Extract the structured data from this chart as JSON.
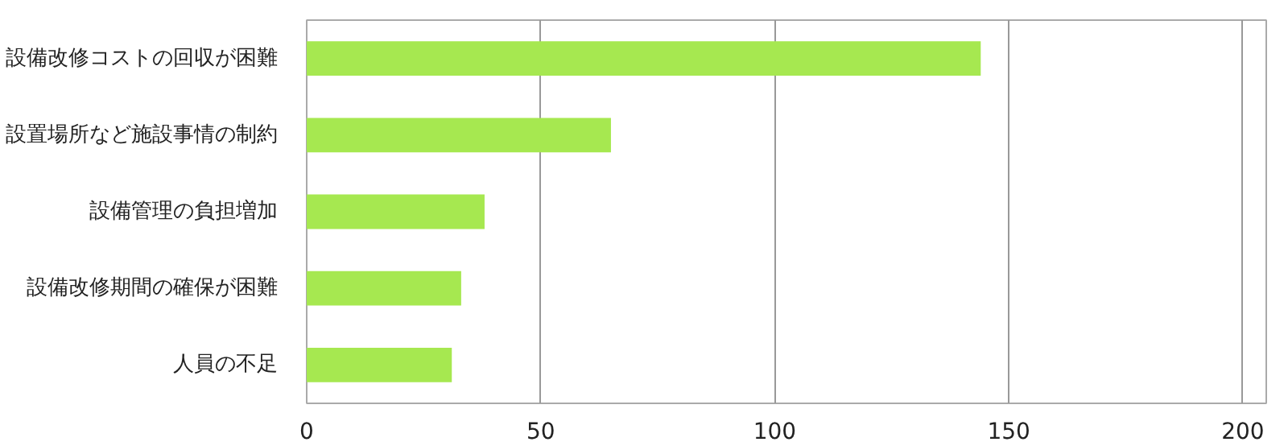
{
  "chart_data": {
    "type": "bar",
    "orientation": "horizontal",
    "categories": [
      "設備改修コストの回収が困難",
      "設置場所など施設事情の制約",
      "設備管理の負担増加",
      "設備改修期間の確保が困難",
      "人員の不足"
    ],
    "values": [
      144,
      65,
      38,
      33,
      31
    ],
    "color": "#a6e850",
    "xlim": [
      0,
      205
    ],
    "xticks": [
      0,
      50,
      100,
      150,
      200
    ],
    "grid": "x"
  }
}
